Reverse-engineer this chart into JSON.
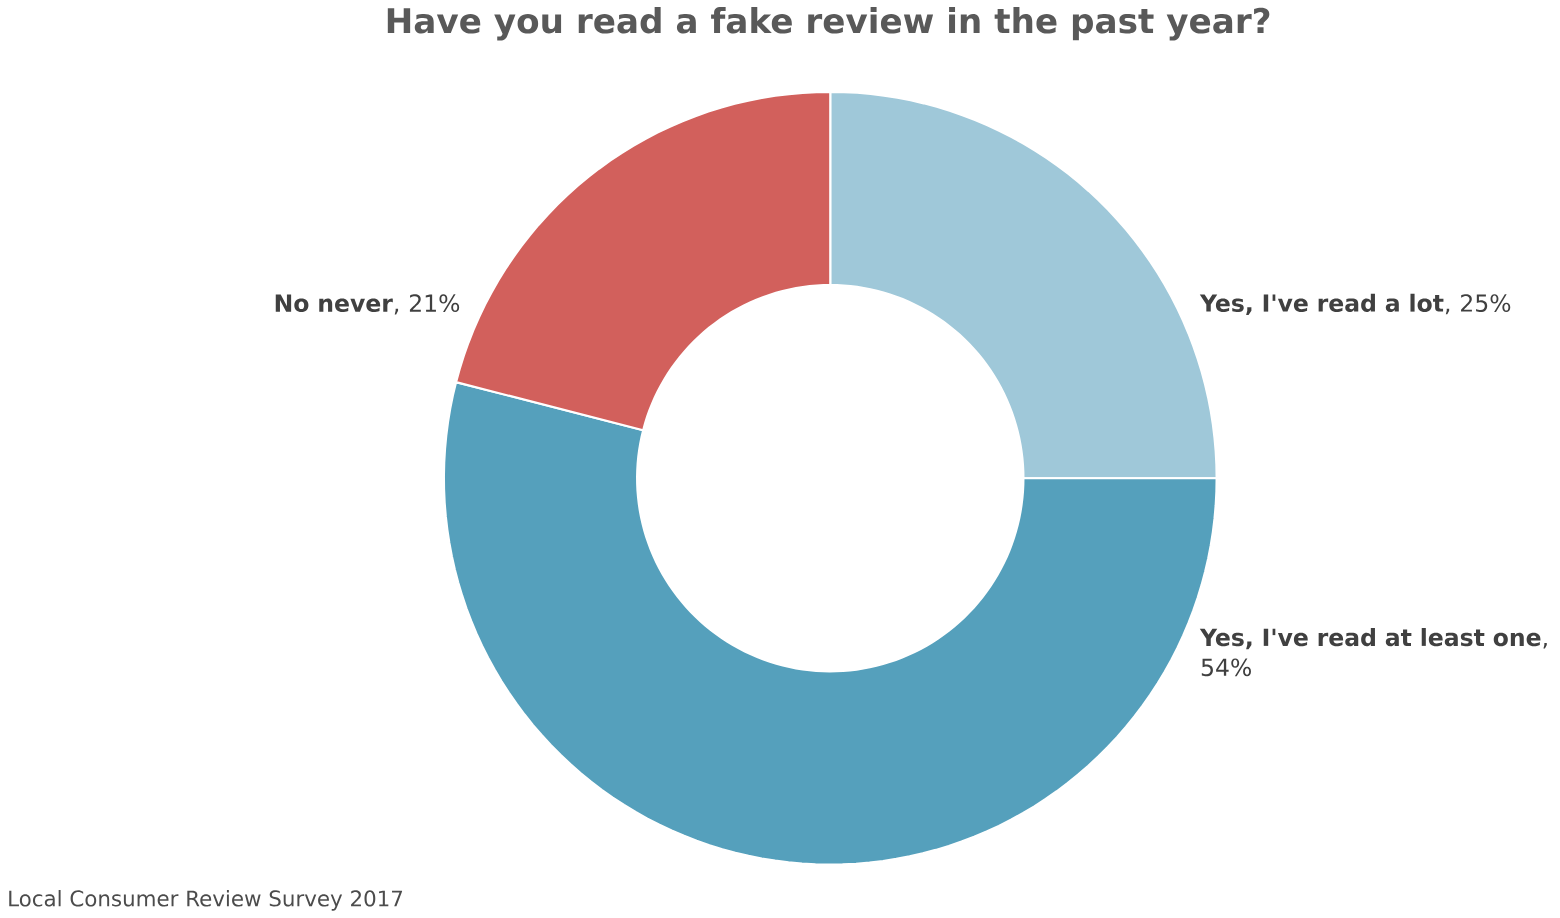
{
  "chart_data": {
    "type": "donut",
    "title": "Have you read a fake review in the past year?",
    "categories": [
      "**Yes, I've read a lot**, 25%",
      "**Yes, I've read at least one**, 54%",
      "**No never**, 21%"
    ],
    "values": [
      25,
      54,
      21
    ],
    "colors": [
      "#9fc8d9",
      "#55a0bc",
      "#d2605c"
    ],
    "annotations": [
      "Local Consumer Review Survey 2017"
    ]
  }
}
